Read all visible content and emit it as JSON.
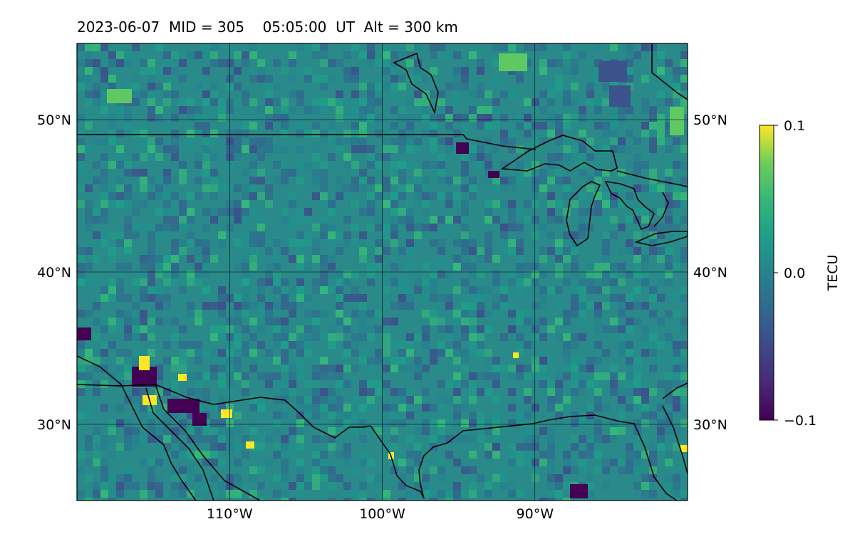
{
  "title": "2023-06-07  MID = 305    05:05:00  UT  Alt = 300 km",
  "map": {
    "lon_range": [
      -120,
      -80
    ],
    "lat_range": [
      25,
      55
    ],
    "lon_ticks": [
      {
        "value": -110,
        "label": "110°W"
      },
      {
        "value": -100,
        "label": "100°W"
      },
      {
        "value": -90,
        "label": "90°W"
      }
    ],
    "lat_ticks": [
      {
        "value": 50,
        "label": "50°N"
      },
      {
        "value": 40,
        "label": "40°N"
      },
      {
        "value": 30,
        "label": "30°N"
      }
    ],
    "field_colors": {
      "background": "#2a8a8a",
      "low": "#440154",
      "mid_low": "#3b528b",
      "mid": "#21918c",
      "mid_high": "#5ec962",
      "high": "#fde725"
    },
    "coastline_color": "#000000"
  },
  "colorbar": {
    "label": "TECU",
    "colormap": "viridis",
    "range": [
      -0.1,
      0.1
    ],
    "ticks": [
      {
        "value": 0.1,
        "label": "0.1"
      },
      {
        "value": 0.0,
        "label": "0.0"
      },
      {
        "value": -0.1,
        "label": "−0.1"
      }
    ]
  }
}
